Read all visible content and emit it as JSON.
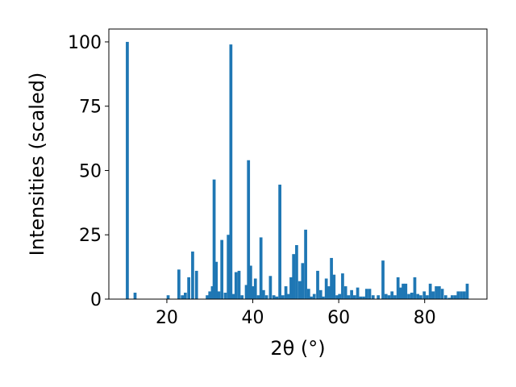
{
  "chart_data": {
    "type": "bar",
    "xlabel": "2θ (°)",
    "ylabel": "Intensities (scaled)",
    "xlim": [
      6.5,
      94.5
    ],
    "ylim": [
      0,
      105
    ],
    "x_ticks": [
      20,
      40,
      60,
      80
    ],
    "y_ticks": [
      0,
      25,
      50,
      75,
      100
    ],
    "bar_width": 0.7,
    "color": "#1f77b4",
    "grid": false,
    "legend": "none",
    "x": [
      10.8,
      12.6,
      20.3,
      22.8,
      23.6,
      24.3,
      25.1,
      26.0,
      26.9,
      29.4,
      30.0,
      30.6,
      31.0,
      31.5,
      32.1,
      32.8,
      33.6,
      34.3,
      34.9,
      35.5,
      36.1,
      36.8,
      37.5,
      38.5,
      39.0,
      39.5,
      40.0,
      40.6,
      41.3,
      41.9,
      42.5,
      43.2,
      44.1,
      44.9,
      45.6,
      46.3,
      47.0,
      47.7,
      48.3,
      48.9,
      49.5,
      50.2,
      50.9,
      51.6,
      52.3,
      53.0,
      53.6,
      54.3,
      55.1,
      55.8,
      56.4,
      57.1,
      57.7,
      58.3,
      58.9,
      59.6,
      60.2,
      60.9,
      61.6,
      62.3,
      63.0,
      63.7,
      64.4,
      65.1,
      65.8,
      66.5,
      67.2,
      68.0,
      69.2,
      70.3,
      71.0,
      71.7,
      72.4,
      73.1,
      73.8,
      74.4,
      75.0,
      75.6,
      76.3,
      77.0,
      77.7,
      78.4,
      79.1,
      79.9,
      80.6,
      81.3,
      82.0,
      82.7,
      83.4,
      84.1,
      84.9,
      85.7,
      86.4,
      87.1,
      87.8,
      88.5,
      89.2,
      89.9
    ],
    "values": [
      100,
      2.5,
      1.5,
      11.5,
      1.5,
      2.5,
      8.5,
      18.5,
      11,
      1.5,
      3,
      5,
      46.5,
      14.5,
      3,
      23,
      2.5,
      25,
      99,
      2,
      10.5,
      11,
      1.5,
      5.5,
      54,
      13,
      5,
      8,
      1.5,
      24,
      3.5,
      1.5,
      9,
      1.5,
      1,
      44.5,
      1.5,
      5,
      2,
      8.5,
      17.5,
      21,
      7,
      14,
      27,
      4,
      1,
      2,
      11,
      3.5,
      1,
      8,
      5,
      16,
      9.5,
      1.5,
      2,
      10,
      5,
      1.5,
      3.5,
      1.5,
      4.5,
      1,
      1,
      4,
      4,
      1.5,
      1.5,
      15,
      2,
      1.5,
      3,
      1.5,
      8.5,
      4.5,
      6,
      6,
      2,
      2.5,
      8.5,
      2,
      1.5,
      3,
      1.5,
      6,
      3,
      5,
      5,
      4,
      1.5,
      0.5,
      1.5,
      1.5,
      3,
      3,
      3,
      6
    ]
  }
}
